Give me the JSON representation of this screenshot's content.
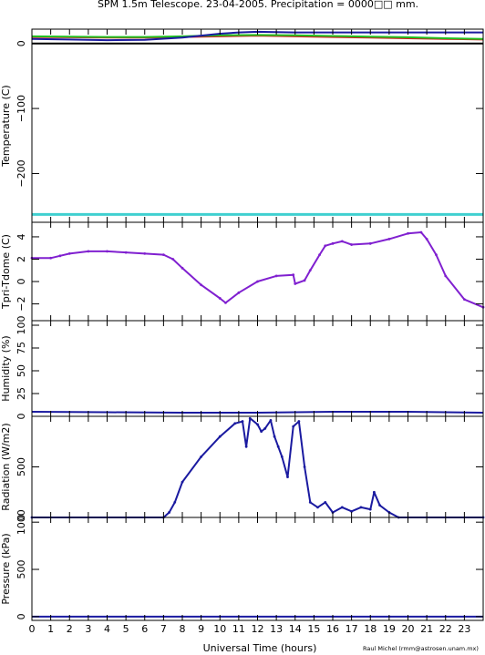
{
  "title": "SPM 1.5m Telescope. 23-04-2005. Precipitation = 0000□□ mm.",
  "credit": "Raul Michel (rmm@astrosen.unam.mx)",
  "chart_data": [
    {
      "type": "line",
      "ylabel": "Temperature (C)",
      "xlim": [
        0,
        24
      ],
      "ylim": [
        -275,
        22
      ],
      "yticks": [
        0,
        -100,
        -200
      ],
      "grid": false,
      "series": [
        {
          "color": "#d02020",
          "x": [
            0,
            2,
            4,
            6,
            8,
            10,
            12,
            14,
            16,
            18,
            20,
            22,
            24
          ],
          "y": [
            10,
            9.5,
            9,
            9,
            10,
            11,
            12,
            11,
            10,
            9,
            8,
            7,
            6
          ]
        },
        {
          "color": "#20c020",
          "x": [
            0,
            2,
            4,
            6,
            8,
            10,
            12,
            14,
            16,
            18,
            20,
            22,
            24
          ],
          "y": [
            11,
            10.5,
            10,
            10,
            11,
            12.5,
            13,
            12.5,
            11.5,
            10.5,
            9.5,
            8,
            7
          ]
        },
        {
          "color": "#1a1aa0",
          "x": [
            0,
            2,
            4,
            6,
            8,
            10,
            11,
            12,
            13,
            14,
            16,
            18,
            20,
            22,
            24
          ],
          "y": [
            7,
            6,
            5,
            5.5,
            9,
            15,
            17,
            18,
            17.5,
            17,
            17,
            17,
            17,
            17,
            17
          ]
        },
        {
          "color": "#000000",
          "x": [
            0,
            24
          ],
          "y": [
            0,
            0
          ]
        },
        {
          "color": "#40d0d0",
          "x": [
            0,
            24
          ],
          "y": [
            -263,
            -263
          ]
        }
      ]
    },
    {
      "type": "scatter",
      "ylabel": "Tpri-Tdome (C)",
      "xlim": [
        0,
        24
      ],
      "ylim": [
        -3.5,
        5.3
      ],
      "yticks": [
        4,
        2,
        0,
        -2
      ],
      "grid": false,
      "series": [
        {
          "color": "#8020d0",
          "x": [
            0,
            1,
            1.5,
            2,
            3,
            4,
            5,
            6,
            7,
            7.5,
            8,
            9,
            10,
            10.3,
            11,
            12,
            13,
            13.9,
            14.0,
            14.5,
            14.8,
            15.3,
            15.6,
            16,
            16.5,
            17,
            18,
            19,
            20,
            20.7,
            21,
            21.5,
            22,
            23,
            24
          ],
          "y": [
            2.1,
            2.1,
            2.3,
            2.5,
            2.7,
            2.7,
            2.6,
            2.5,
            2.4,
            2.0,
            1.2,
            -0.3,
            -1.5,
            -1.9,
            -1.0,
            0.0,
            0.5,
            0.6,
            -0.2,
            0.1,
            1.0,
            2.4,
            3.2,
            3.4,
            3.6,
            3.3,
            3.4,
            3.8,
            4.3,
            4.4,
            3.8,
            2.4,
            0.5,
            -1.6,
            -2.3
          ]
        }
      ]
    },
    {
      "type": "line",
      "ylabel": "Humidity (%)",
      "xlim": [
        0,
        24
      ],
      "ylim": [
        0,
        105
      ],
      "yticks": [
        100,
        75,
        50,
        25,
        0
      ],
      "grid": false,
      "series": [
        {
          "color": "#1a1aa0",
          "x": [
            0,
            4,
            8,
            12,
            16,
            20,
            24
          ],
          "y": [
            5,
            4.5,
            4,
            4,
            5,
            5,
            4
          ]
        }
      ]
    },
    {
      "type": "scatter",
      "ylabel": "Radiation (W/m2)",
      "xlim": [
        0,
        24
      ],
      "ylim": [
        0,
        1000
      ],
      "yticks": [
        500,
        0
      ],
      "grid": false,
      "series": [
        {
          "color": "#1a1aa0",
          "x": [
            0,
            7,
            7.3,
            7.6,
            8,
            9,
            10,
            10.8,
            11.2,
            11.4,
            11.6,
            12,
            12.2,
            12.4,
            12.7,
            12.9,
            13.1,
            13.3,
            13.6,
            13.9,
            14.2,
            14.5,
            14.8,
            15.2,
            15.6,
            16,
            16.5,
            17,
            17.5,
            18,
            18.2,
            18.5,
            19,
            19.5,
            24
          ],
          "y": [
            0,
            0,
            50,
            150,
            350,
            600,
            800,
            930,
            950,
            700,
            980,
            920,
            850,
            880,
            960,
            800,
            700,
            600,
            400,
            900,
            950,
            500,
            150,
            100,
            150,
            50,
            100,
            60,
            100,
            80,
            250,
            120,
            50,
            0,
            0
          ]
        }
      ]
    },
    {
      "type": "line",
      "ylabel": "Pressure (kPa)",
      "xlabel": "Universal Time (hours)",
      "xlim": [
        0,
        24
      ],
      "ylim": [
        -40,
        1050
      ],
      "yticks": [
        1000,
        500,
        0
      ],
      "xticks": [
        0,
        1,
        2,
        3,
        4,
        5,
        6,
        7,
        8,
        9,
        10,
        11,
        12,
        13,
        14,
        15,
        16,
        17,
        18,
        19,
        20,
        21,
        22,
        23
      ],
      "grid": false,
      "series": [
        {
          "color": "#1a1aa0",
          "x": [
            0,
            24
          ],
          "y": [
            0,
            0
          ]
        }
      ]
    }
  ]
}
